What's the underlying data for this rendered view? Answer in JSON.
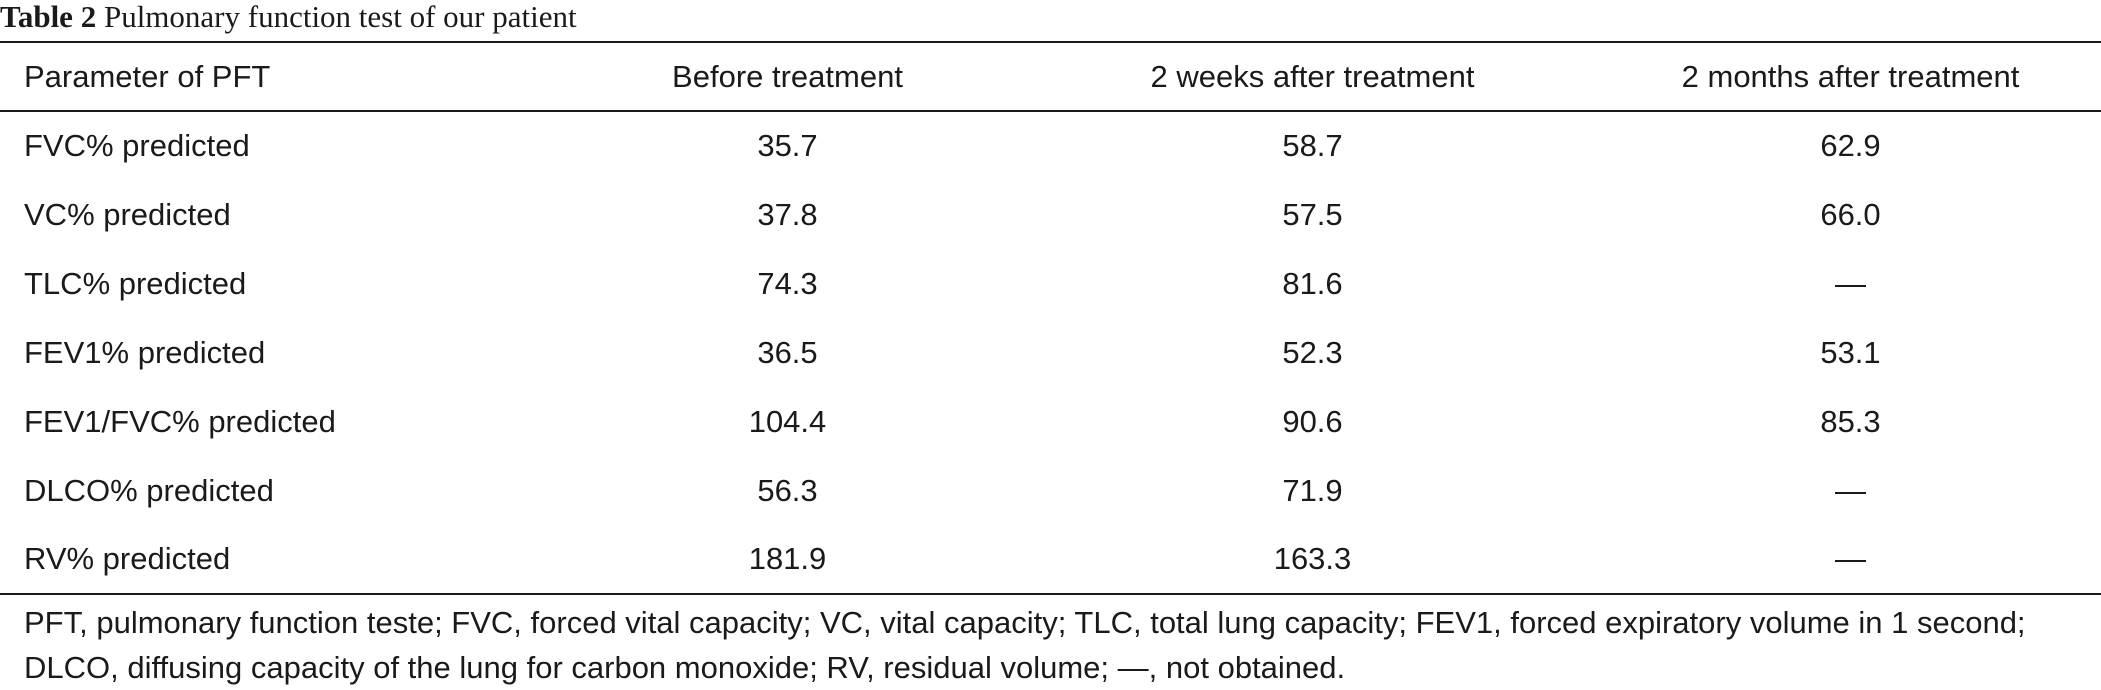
{
  "caption": {
    "label": "Table 2",
    "title": "Pulmonary function test of our patient"
  },
  "table": {
    "headers": [
      "Parameter of PFT",
      "Before treatment",
      "2 weeks after treatment",
      "2 months after treatment"
    ],
    "rows": [
      [
        "FVC% predicted",
        "35.7",
        "58.7",
        "62.9"
      ],
      [
        "VC% predicted",
        "37.8",
        "57.5",
        "66.0"
      ],
      [
        "TLC% predicted",
        "74.3",
        "81.6",
        "—"
      ],
      [
        "FEV1% predicted",
        "36.5",
        "52.3",
        "53.1"
      ],
      [
        "FEV1/FVC% predicted",
        "104.4",
        "90.6",
        "85.3"
      ],
      [
        "DLCO% predicted",
        "56.3",
        "71.9",
        "—"
      ],
      [
        "RV% predicted",
        "181.9",
        "163.3",
        "—"
      ]
    ]
  },
  "footnote": "PFT, pulmonary function teste; FVC, forced vital capacity; VC, vital capacity; TLC, total lung capacity; FEV1, forced expiratory volume in 1 second; DLCO, diffusing capacity of the lung for carbon monoxide; RV, residual volume; —, not obtained."
}
